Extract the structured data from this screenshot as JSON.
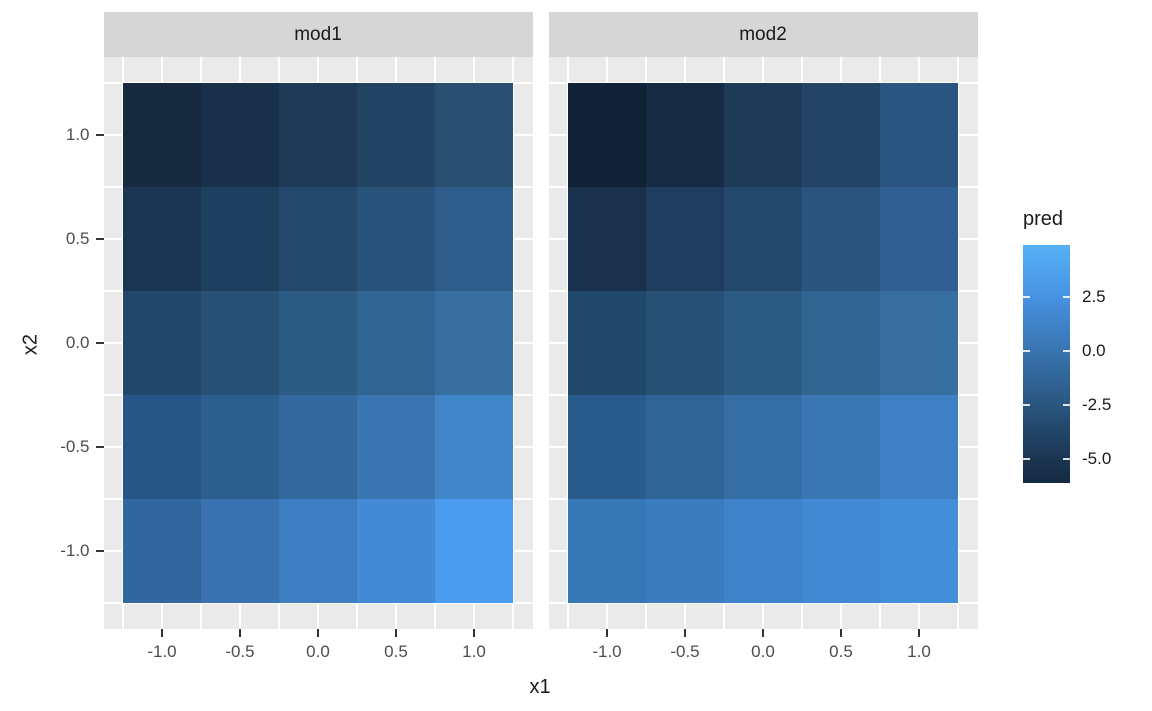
{
  "figure": {
    "background": "#FFFFFF"
  },
  "chart_data": {
    "type": "heatmap",
    "faceted": true,
    "xlabel": "x1",
    "ylabel": "x2",
    "x_tick_labels": [
      "-1.0",
      "-0.5",
      "0.0",
      "0.5",
      "1.0"
    ],
    "y_tick_labels": [
      "1.0",
      "0.5",
      "0.0",
      "-0.5",
      "-1.0"
    ],
    "x_values": [
      -1.0,
      -0.5,
      0.0,
      0.5,
      1.0
    ],
    "y_values_top_to_bottom": [
      1.0,
      0.5,
      0.0,
      -0.5,
      -1.0
    ],
    "legend": {
      "title": "pred",
      "tick_labels": [
        "2.5",
        "0.0",
        "-2.5",
        "-5.0"
      ],
      "tick_values": [
        2.5,
        0.0,
        -2.5,
        -5.0
      ],
      "scale_range_bottom_to_top": [
        -6.1,
        4.9
      ],
      "gradient_low": "#132B43",
      "gradient_high": "#56B1F7",
      "gradient_stops_top_to_bottom": [
        "#56B1F7",
        "#4792E2",
        "#3874B0",
        "#2A567F",
        "#1B3551",
        "#132B43"
      ]
    },
    "facets": [
      {
        "label": "mod1",
        "cell_colors_rows_top_to_bottom": [
          [
            "#16293F",
            "#19304A",
            "#1E3A56",
            "#224463",
            "#284E70"
          ],
          [
            "#1B3652",
            "#1F3F5E",
            "#24496C",
            "#28527A",
            "#2E5D8B"
          ],
          [
            "#21486A",
            "#265174",
            "#2B5B83",
            "#316591",
            "#376FA0"
          ],
          [
            "#275686",
            "#2D5F8E",
            "#33699E",
            "#3A75B0",
            "#4085C8"
          ],
          [
            "#30679F",
            "#3873AF",
            "#3D7EC2",
            "#4489D4",
            "#4B9BEF"
          ]
        ],
        "approx_pred_values_rows_top_to_bottom": [
          [
            -6.0,
            -5.5,
            -4.9,
            -4.2,
            -3.4
          ],
          [
            -5.0,
            -4.4,
            -3.7,
            -3.0,
            -2.1
          ],
          [
            -3.7,
            -3.0,
            -2.2,
            -1.4,
            -0.5
          ],
          [
            -2.5,
            -1.8,
            -0.9,
            0.0,
            1.2
          ],
          [
            -1.1,
            -0.1,
            0.8,
            1.7,
            3.1
          ]
        ]
      },
      {
        "label": "mod2",
        "cell_colors_rows_top_to_bottom": [
          [
            "#112236",
            "#182B44",
            "#1E3A56",
            "#244466",
            "#2A5582"
          ],
          [
            "#1A314E",
            "#203D5D",
            "#25486D",
            "#2A537D",
            "#306093"
          ],
          [
            "#21476A",
            "#265174",
            "#2B5B83",
            "#316591",
            "#376FA0"
          ],
          [
            "#2A5B8D",
            "#2F6496",
            "#356EA5",
            "#3A77B3",
            "#3E80C3"
          ],
          [
            "#3677B6",
            "#3A7CBD",
            "#3E83C9",
            "#418AD3",
            "#438ED8"
          ]
        ],
        "approx_pred_values_rows_top_to_bottom": [
          [
            -6.1,
            -5.6,
            -4.9,
            -4.1,
            -3.1
          ],
          [
            -5.1,
            -4.3,
            -3.5,
            -2.7,
            -1.8
          ],
          [
            -3.8,
            -3.0,
            -2.2,
            -1.4,
            -0.5
          ],
          [
            -2.3,
            -1.6,
            -0.8,
            -0.1,
            0.7
          ],
          [
            -0.3,
            0.2,
            0.7,
            1.2,
            1.5
          ]
        ]
      }
    ],
    "layout_hints": {
      "grid": "white major/minor gridlines on gray panel, visible only in panel expansion margins",
      "legend_position": "right",
      "strip_position": "top"
    }
  },
  "theme_colors": {
    "panel_background": "#EAEAEA",
    "grid_color": "#FFFFFF",
    "strip_background": "#D6D6D6",
    "strip_text": "#1A1A1A",
    "axis_text": "#4D4D4D",
    "axis_title": "#1A1A1A",
    "tick_mark": "#333333"
  }
}
